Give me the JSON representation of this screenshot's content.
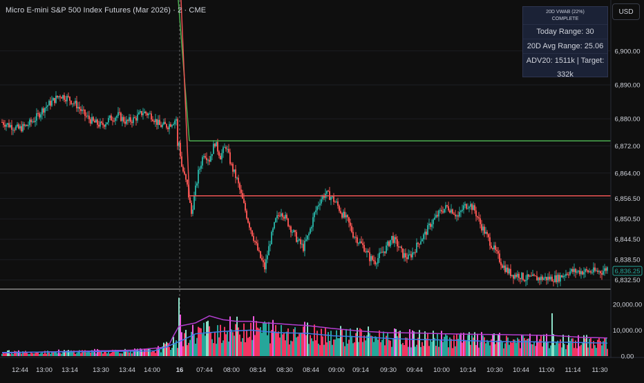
{
  "header": {
    "title": "Micro E-mini S&P 500 Index Futures (Mar 2026) · 2 · CME"
  },
  "currency_button": {
    "label": "USD"
  },
  "info_panel": {
    "indicator": "20D VWAB (22%)",
    "status": "COMPLETE",
    "today_range": "Today Range: 30",
    "avg_range": "20D Avg Range: 25.06",
    "adv": "ADV20: 1511k | Target: 332k"
  },
  "price_axis": {
    "ticks": [
      "6,900.00",
      "6,890.00",
      "6,880.00",
      "6,872.00",
      "6,864.00",
      "6,856.50",
      "6,850.50",
      "6,844.50",
      "6,838.50",
      "6,832.50"
    ],
    "current_price_label": "6,836.25"
  },
  "volume_axis": {
    "ticks": [
      "20,000.00",
      "10,000.00",
      "0.00"
    ]
  },
  "time_axis": {
    "ticks": [
      "12:44",
      "13:00",
      "13:14",
      "13:30",
      "13:44",
      "14:00",
      "16",
      "07:44",
      "08:00",
      "08:14",
      "08:30",
      "08:44",
      "09:00",
      "09:14",
      "09:30",
      "09:44",
      "10:00",
      "10:14",
      "10:30",
      "10:44",
      "11:00",
      "11:14",
      "11:30"
    ]
  },
  "levels": {
    "upper_green": 6873.5,
    "lower_red": 6857.3
  },
  "colors": {
    "up": "#26a69a",
    "down": "#ef5350",
    "vol_up": "#26a69a",
    "vol_down": "#f23663",
    "vol_hi_up": "#8de0c8",
    "vol_hi_down": "#f05ae0",
    "ma_purple": "#b33ed1",
    "ma_blue": "#3d7ce6",
    "level_green": "#4caf50",
    "level_red": "#f05454"
  },
  "chart_data": {
    "type": "candlestick",
    "title": "Micro E-mini S&P 500 Index Futures (Mar 2026) · 2 · CME",
    "y_range": [
      6830,
      6915
    ],
    "volume_range": [
      0,
      25000
    ],
    "anchors": [
      [
        0,
        6879
      ],
      [
        6,
        6878
      ],
      [
        12,
        6877
      ],
      [
        18,
        6878
      ],
      [
        24,
        6880
      ],
      [
        30,
        6883
      ],
      [
        36,
        6885
      ],
      [
        42,
        6887
      ],
      [
        48,
        6886
      ],
      [
        54,
        6884
      ],
      [
        60,
        6881
      ],
      [
        66,
        6879
      ],
      [
        72,
        6878
      ],
      [
        78,
        6880
      ],
      [
        84,
        6881
      ],
      [
        90,
        6879
      ],
      [
        96,
        6880
      ],
      [
        102,
        6882
      ],
      [
        108,
        6881
      ],
      [
        114,
        6878
      ],
      [
        120,
        6878
      ],
      [
        126,
        6880
      ],
      [
        130,
        6866
      ],
      [
        134,
        6860
      ],
      [
        137,
        6852
      ],
      [
        142,
        6864
      ],
      [
        146,
        6870
      ],
      [
        150,
        6868
      ],
      [
        154,
        6873
      ],
      [
        158,
        6869
      ],
      [
        162,
        6872
      ],
      [
        166,
        6866
      ],
      [
        170,
        6862
      ],
      [
        174,
        6856
      ],
      [
        178,
        6850
      ],
      [
        182,
        6845
      ],
      [
        186,
        6840
      ],
      [
        190,
        6836
      ],
      [
        194,
        6844
      ],
      [
        198,
        6850
      ],
      [
        202,
        6853
      ],
      [
        206,
        6850
      ],
      [
        210,
        6847
      ],
      [
        214,
        6844
      ],
      [
        218,
        6842
      ],
      [
        222,
        6846
      ],
      [
        226,
        6852
      ],
      [
        230,
        6856
      ],
      [
        234,
        6858
      ],
      [
        238,
        6857
      ],
      [
        242,
        6855
      ],
      [
        246,
        6852
      ],
      [
        250,
        6850
      ],
      [
        254,
        6846
      ],
      [
        258,
        6844
      ],
      [
        262,
        6842
      ],
      [
        266,
        6839
      ],
      [
        270,
        6838
      ],
      [
        274,
        6840
      ],
      [
        278,
        6842
      ],
      [
        282,
        6845
      ],
      [
        286,
        6843
      ],
      [
        290,
        6840
      ],
      [
        294,
        6839
      ],
      [
        298,
        6841
      ],
      [
        302,
        6844
      ],
      [
        306,
        6846
      ],
      [
        310,
        6849
      ],
      [
        314,
        6851
      ],
      [
        318,
        6853
      ],
      [
        322,
        6854
      ],
      [
        326,
        6853
      ],
      [
        330,
        6851
      ],
      [
        334,
        6854
      ],
      [
        338,
        6855
      ],
      [
        342,
        6853
      ],
      [
        346,
        6849
      ],
      [
        350,
        6846
      ],
      [
        354,
        6843
      ],
      [
        358,
        6840
      ],
      [
        362,
        6837
      ],
      [
        366,
        6835
      ],
      [
        370,
        6834
      ],
      [
        374,
        6834
      ],
      [
        378,
        6833
      ],
      [
        384,
        6833
      ],
      [
        390,
        6833
      ],
      [
        396,
        6833
      ],
      [
        402,
        6833
      ],
      [
        406,
        6834
      ],
      [
        410,
        6835
      ],
      [
        414,
        6835
      ],
      [
        418,
        6835
      ],
      [
        422,
        6835
      ],
      [
        426,
        6835
      ],
      [
        430,
        6835
      ],
      [
        434,
        6835
      ],
      [
        438,
        6836
      ]
    ],
    "volume_anchors": [
      [
        0,
        1200
      ],
      [
        30,
        1600
      ],
      [
        60,
        1900
      ],
      [
        95,
        2300
      ],
      [
        120,
        3500
      ],
      [
        124,
        7800
      ],
      [
        128,
        11500
      ],
      [
        140,
        12800
      ],
      [
        150,
        15500
      ],
      [
        160,
        14000
      ],
      [
        170,
        13400
      ],
      [
        180,
        13400
      ],
      [
        190,
        12800
      ],
      [
        200,
        12500
      ],
      [
        210,
        12100
      ],
      [
        220,
        11800
      ],
      [
        240,
        10600
      ],
      [
        260,
        9600
      ],
      [
        280,
        9000
      ],
      [
        300,
        8900
      ],
      [
        320,
        8600
      ],
      [
        340,
        8400
      ],
      [
        360,
        8300
      ],
      [
        380,
        8100
      ],
      [
        400,
        7900
      ],
      [
        420,
        7200
      ],
      [
        438,
        7000
      ]
    ],
    "blue_ma_anchors": [
      [
        0,
        1400
      ],
      [
        40,
        1600
      ],
      [
        80,
        1800
      ],
      [
        110,
        2000
      ],
      [
        120,
        3800
      ],
      [
        130,
        6000
      ],
      [
        140,
        8600
      ],
      [
        160,
        9500
      ],
      [
        180,
        10000
      ],
      [
        200,
        9000
      ],
      [
        220,
        8800
      ],
      [
        240,
        7800
      ],
      [
        260,
        7400
      ],
      [
        280,
        6800
      ],
      [
        300,
        6400
      ],
      [
        320,
        6200
      ],
      [
        340,
        5900
      ],
      [
        360,
        5600
      ],
      [
        380,
        5500
      ],
      [
        400,
        5400
      ],
      [
        420,
        5200
      ],
      [
        438,
        5000
      ]
    ]
  }
}
